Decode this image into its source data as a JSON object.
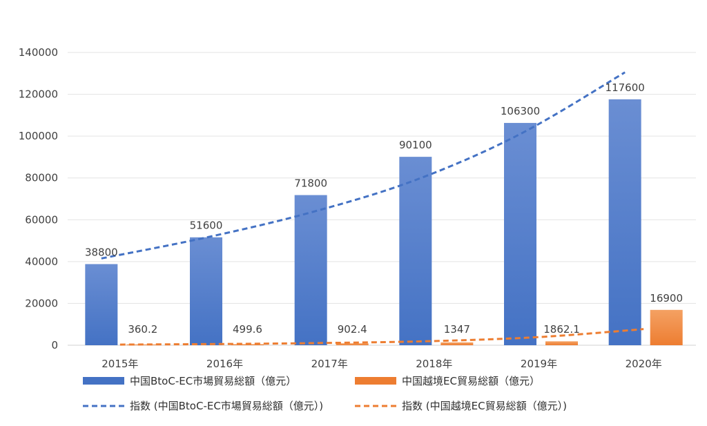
{
  "chart_data": {
    "type": "bar",
    "categories": [
      "2015年",
      "2016年",
      "2017年",
      "2018年",
      "2019年",
      "2020年"
    ],
    "series": [
      {
        "name": "中国BtoC-EC市場貿易総額（億元）",
        "values": [
          38800,
          51600,
          71800,
          90100,
          106300,
          117600
        ],
        "labels": [
          "38800",
          "51600",
          "71800",
          "90100",
          "106300",
          "117600"
        ],
        "color": "#4472C4",
        "color_light": "#6A8ED3"
      },
      {
        "name": "中国越境EC貿易総額（億元）",
        "values": [
          360.2,
          499.6,
          902.4,
          1347,
          1862.1,
          16900
        ],
        "labels": [
          "360.2",
          "499.6",
          "902.4",
          "1347",
          "1862.1",
          "16900"
        ],
        "color": "#ED7D31",
        "color_light": "#F4A163"
      }
    ],
    "trendlines": [
      {
        "name": "指数 (中国BtoC-EC市場貿易総額（億元）)",
        "type": "exponential",
        "values": [
          41500,
          51500,
          63500,
          79000,
          101000,
          130500
        ],
        "color": "#4472C4"
      },
      {
        "name": "指数 (中国越境EC貿易総額（億元）)",
        "type": "exponential",
        "values": [
          300,
          600,
          1100,
          2000,
          3900,
          7700
        ],
        "color": "#ED7D31"
      }
    ],
    "ylim": [
      0,
      140000
    ],
    "yticks": [
      "0",
      "20000",
      "40000",
      "60000",
      "80000",
      "100000",
      "120000",
      "140000"
    ],
    "ytick_values": [
      0,
      20000,
      40000,
      60000,
      80000,
      100000,
      120000,
      140000
    ],
    "grid": true,
    "legend_position": "bottom"
  }
}
